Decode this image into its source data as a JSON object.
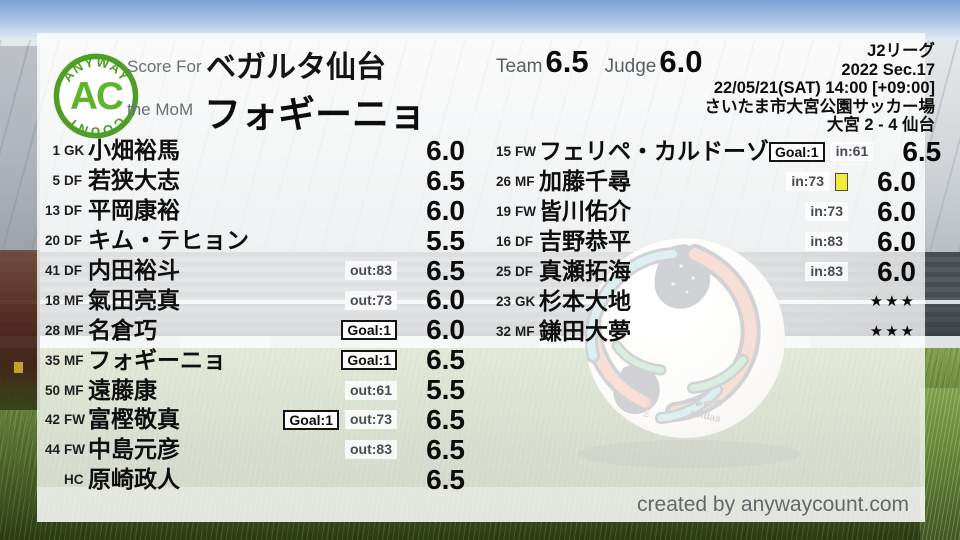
{
  "branding": {
    "logo_arc_top": "ANYWAY",
    "logo_center": "AC",
    "logo_arc_bottom": "COUNT"
  },
  "header": {
    "score_for_label": "Score For",
    "team_name": "ベガルタ仙台",
    "mom_label": "the MoM",
    "mom_name": "フォギーニョ",
    "team_label": "Team",
    "team_score": "6.5",
    "judge_label": "Judge",
    "judge_score": "6.0"
  },
  "match_info": {
    "league": "J2リーグ",
    "section": "2022 Sec.17",
    "datetime": "22/05/21(SAT) 14:00 [+09:00]",
    "venue": "さいたま市大宮公園サッカー場",
    "score": "大宮 2 - 4 仙台"
  },
  "starters": [
    {
      "num": "1",
      "pos": "GK",
      "name": "小畑裕馬",
      "badges": [],
      "rating": "6.0"
    },
    {
      "num": "5",
      "pos": "DF",
      "name": "若狭大志",
      "badges": [],
      "rating": "6.5"
    },
    {
      "num": "13",
      "pos": "DF",
      "name": "平岡康裕",
      "badges": [],
      "rating": "6.0"
    },
    {
      "num": "20",
      "pos": "DF",
      "name": "キム・テヒョン",
      "badges": [],
      "rating": "5.5"
    },
    {
      "num": "41",
      "pos": "DF",
      "name": "内田裕斗",
      "badges": [
        {
          "type": "sub",
          "label": "out:83"
        }
      ],
      "rating": "6.5"
    },
    {
      "num": "18",
      "pos": "MF",
      "name": "氣田亮真",
      "badges": [
        {
          "type": "sub",
          "label": "out:73"
        }
      ],
      "rating": "6.0"
    },
    {
      "num": "28",
      "pos": "MF",
      "name": "名倉巧",
      "badges": [
        {
          "type": "goal",
          "label": "Goal:1"
        }
      ],
      "rating": "6.0"
    },
    {
      "num": "35",
      "pos": "MF",
      "name": "フォギーニョ",
      "badges": [
        {
          "type": "goal",
          "label": "Goal:1"
        }
      ],
      "rating": "6.5"
    },
    {
      "num": "50",
      "pos": "MF",
      "name": "遠藤康",
      "badges": [
        {
          "type": "sub",
          "label": "out:61"
        }
      ],
      "rating": "5.5"
    },
    {
      "num": "42",
      "pos": "FW",
      "name": "富樫敬真",
      "badges": [
        {
          "type": "goal",
          "label": "Goal:1"
        },
        {
          "type": "sub",
          "label": "out:73"
        }
      ],
      "rating": "6.5"
    },
    {
      "num": "44",
      "pos": "FW",
      "name": "中島元彦",
      "badges": [
        {
          "type": "sub",
          "label": "out:83"
        }
      ],
      "rating": "6.5"
    },
    {
      "num": "",
      "pos": "HC",
      "name": "原崎政人",
      "badges": [],
      "rating": "6.5"
    }
  ],
  "substitutes": [
    {
      "num": "15",
      "pos": "FW",
      "name": "フェリペ・カルドーゾ",
      "badges": [
        {
          "type": "goal",
          "label": "Goal:1"
        },
        {
          "type": "sub",
          "label": "in:61"
        }
      ],
      "rating": "6.5"
    },
    {
      "num": "26",
      "pos": "MF",
      "name": "加藤千尋",
      "badges": [
        {
          "type": "sub",
          "label": "in:73"
        },
        {
          "type": "yellow-card",
          "label": ""
        }
      ],
      "rating": "6.0"
    },
    {
      "num": "19",
      "pos": "FW",
      "name": "皆川佑介",
      "badges": [
        {
          "type": "sub",
          "label": "in:73"
        }
      ],
      "rating": "6.0"
    },
    {
      "num": "16",
      "pos": "DF",
      "name": "吉野恭平",
      "badges": [
        {
          "type": "sub",
          "label": "in:83"
        }
      ],
      "rating": "6.0"
    },
    {
      "num": "25",
      "pos": "DF",
      "name": "真瀬拓海",
      "badges": [
        {
          "type": "sub",
          "label": "in:83"
        }
      ],
      "rating": "6.0"
    },
    {
      "num": "23",
      "pos": "GK",
      "name": "杉本大地",
      "badges": [],
      "rating": "★★★"
    },
    {
      "num": "32",
      "pos": "MF",
      "name": "鎌田大夢",
      "badges": [],
      "rating": "★★★"
    }
  ],
  "footer": {
    "credit": "created by anywaycount.com"
  },
  "colors": {
    "accent_green": "#4e9f27",
    "card_yellow": "#f2eb3a",
    "grass_green": "#50682a",
    "sky_blue": "#7ba2d3"
  }
}
